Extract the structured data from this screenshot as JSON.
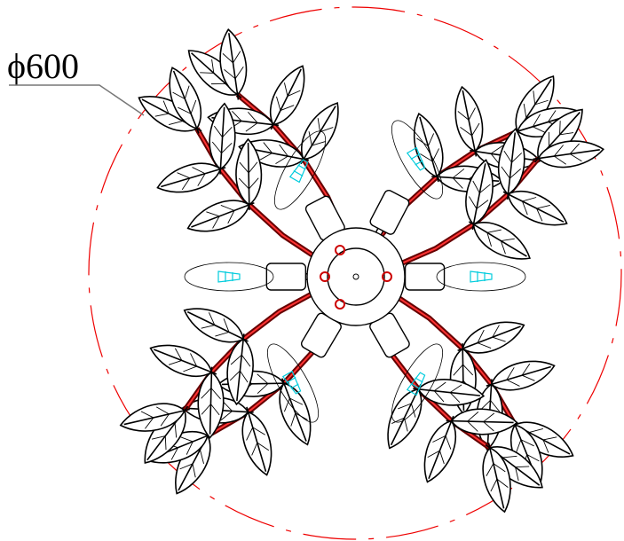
{
  "dimension": {
    "label": "ϕ600"
  }
}
